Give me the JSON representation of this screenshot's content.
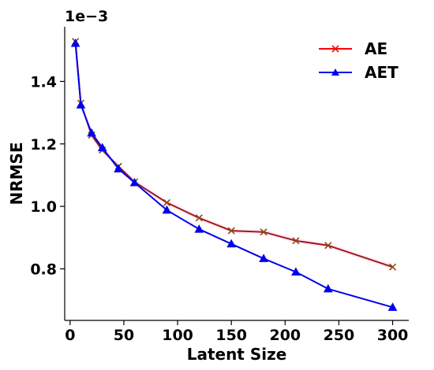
{
  "chart_data": {
    "type": "line",
    "xlabel": "Latent Size",
    "ylabel": "NRMSE",
    "y_offset_label": "1e−3",
    "xlim": [
      -5,
      315
    ],
    "ylim": [
      0.635,
      1.575
    ],
    "xticks": [
      0,
      50,
      100,
      150,
      200,
      250,
      300
    ],
    "xtick_labels": [
      "0",
      "50",
      "100",
      "150",
      "200",
      "250",
      "300"
    ],
    "yticks": [
      0.8,
      1.0,
      1.2,
      1.4
    ],
    "ytick_labels": [
      "0.8",
      "1.0",
      "1.2",
      "1.4"
    ],
    "grid": false,
    "legend_position": "top-right",
    "x": [
      5,
      10,
      20,
      30,
      45,
      60,
      90,
      120,
      150,
      180,
      210,
      240,
      300
    ],
    "series": [
      {
        "name": "AE",
        "color": "#ff0000",
        "marker": "x",
        "values": [
          1.528,
          1.33,
          1.228,
          1.18,
          1.128,
          1.078,
          1.012,
          0.963,
          0.922,
          0.918,
          0.89,
          0.875,
          0.806
        ]
      },
      {
        "name": "AET",
        "color": "#0000ee",
        "marker": "triangle",
        "values": [
          1.522,
          1.325,
          1.235,
          1.188,
          1.12,
          1.076,
          0.988,
          0.927,
          0.88,
          0.833,
          0.79,
          0.736,
          0.677
        ]
      }
    ]
  }
}
